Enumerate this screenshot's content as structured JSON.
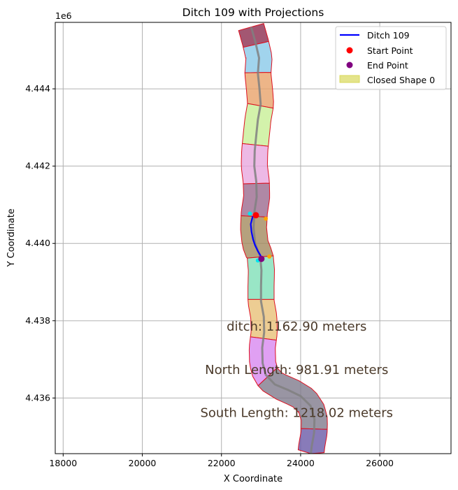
{
  "chart_data": {
    "type": "line",
    "title": "Ditch 109 with Projections",
    "xlabel": "X Coordinate",
    "ylabel": "Y Coordinate",
    "y_offset_label": "1e6",
    "xlim": [
      17800,
      27800
    ],
    "ylim": [
      4434560,
      4445720
    ],
    "x_ticks": [
      18000,
      20000,
      22000,
      24000,
      26000
    ],
    "x_tick_labels": [
      "18000",
      "20000",
      "22000",
      "24000",
      "26000"
    ],
    "y_ticks": [
      4436000,
      4438000,
      4440000,
      4442000,
      4444000
    ],
    "y_tick_labels": [
      "4.436",
      "4.438",
      "4.440",
      "4.442",
      "4.444"
    ],
    "grid": true,
    "legend_position": "top-right",
    "legend": [
      {
        "label": "Ditch 109",
        "kind": "line",
        "color": "#0000ff"
      },
      {
        "label": "Start Point",
        "kind": "dot",
        "color": "#ff0000"
      },
      {
        "label": "End Point",
        "kind": "dot",
        "color": "#800080"
      },
      {
        "label": "Closed Shape 0",
        "kind": "patch",
        "color": "#d8d85a"
      }
    ],
    "annotations": [
      {
        "text": "ditch: 1162.90 meters",
        "x": 23900,
        "y": 4437850
      },
      {
        "text": "North Length: 981.91 meters",
        "x": 23900,
        "y": 4436730
      },
      {
        "text": "South Length: 1218.02 meters",
        "x": 23900,
        "y": 4435620
      }
    ],
    "centerline": [
      [
        22750,
        4445600
      ],
      [
        22860,
        4445200
      ],
      [
        22950,
        4444800
      ],
      [
        22920,
        4444400
      ],
      [
        22960,
        4444000
      ],
      [
        22990,
        4443600
      ],
      [
        22920,
        4443200
      ],
      [
        22880,
        4442800
      ],
      [
        22840,
        4442400
      ],
      [
        22830,
        4442000
      ],
      [
        22880,
        4441600
      ],
      [
        22890,
        4441200
      ],
      [
        22830,
        4440800
      ],
      [
        22810,
        4440400
      ],
      [
        22850,
        4440000
      ],
      [
        22980,
        4439650
      ],
      [
        23010,
        4439300
      ],
      [
        23000,
        4438900
      ],
      [
        23000,
        4438500
      ],
      [
        23070,
        4438100
      ],
      [
        23080,
        4437700
      ],
      [
        23030,
        4437300
      ],
      [
        23040,
        4436900
      ],
      [
        23120,
        4436600
      ],
      [
        23350,
        4436350
      ],
      [
        23700,
        4436200
      ],
      [
        24000,
        4436050
      ],
      [
        24250,
        4435800
      ],
      [
        24350,
        4435450
      ],
      [
        24340,
        4435100
      ],
      [
        24280,
        4434750
      ],
      [
        24260,
        4434560
      ]
    ],
    "polygons": [
      {
        "color": "#8c2d4f",
        "y0": 4445150,
        "y1": 4445720
      },
      {
        "color": "#89c9e8",
        "y0": 4444420,
        "y1": 4445150
      },
      {
        "color": "#e8a26a",
        "y0": 4443560,
        "y1": 4444420
      },
      {
        "color": "#c8ef96",
        "y0": 4442550,
        "y1": 4443560
      },
      {
        "color": "#e8a8de",
        "y0": 4441550,
        "y1": 4442550
      },
      {
        "color": "#9b6a8e",
        "y0": 4440700,
        "y1": 4441550
      },
      {
        "color": "#a38a5e",
        "y0": 4439650,
        "y1": 4440700
      },
      {
        "color": "#7fe0b8",
        "y0": 4438550,
        "y1": 4439650
      },
      {
        "color": "#e8c078",
        "y0": 4437540,
        "y1": 4438550
      },
      {
        "color": "#d888f0",
        "y0": 4436550,
        "y1": 4437540
      },
      {
        "color": "#807a8c",
        "y0": 4435200,
        "y1": 4436550
      },
      {
        "color": "#6a5aa8",
        "y0": 4434560,
        "y1": 4435200
      }
    ],
    "series": [
      {
        "name": "Ditch 109",
        "color": "#0000ff",
        "x": [
          22790,
          22740,
          22760,
          22800,
          22850,
          22920,
          22980,
          23010
        ],
        "y": [
          4440700,
          4440500,
          4440300,
          4440100,
          4439950,
          4439800,
          4439700,
          4439620
        ]
      }
    ],
    "start_point": {
      "x": 22870,
      "y": 4440730,
      "color": "#ff0000"
    },
    "end_point": {
      "x": 23010,
      "y": 4439600,
      "color": "#800080"
    },
    "projection_points": [
      {
        "x": 22720,
        "y": 4440770,
        "color": "#00e5ee"
      },
      {
        "x": 23120,
        "y": 4440640,
        "color": "#ffa500"
      },
      {
        "x": 22920,
        "y": 4439560,
        "color": "#00e5ee"
      },
      {
        "x": 23210,
        "y": 4439660,
        "color": "#ffa500"
      }
    ]
  }
}
